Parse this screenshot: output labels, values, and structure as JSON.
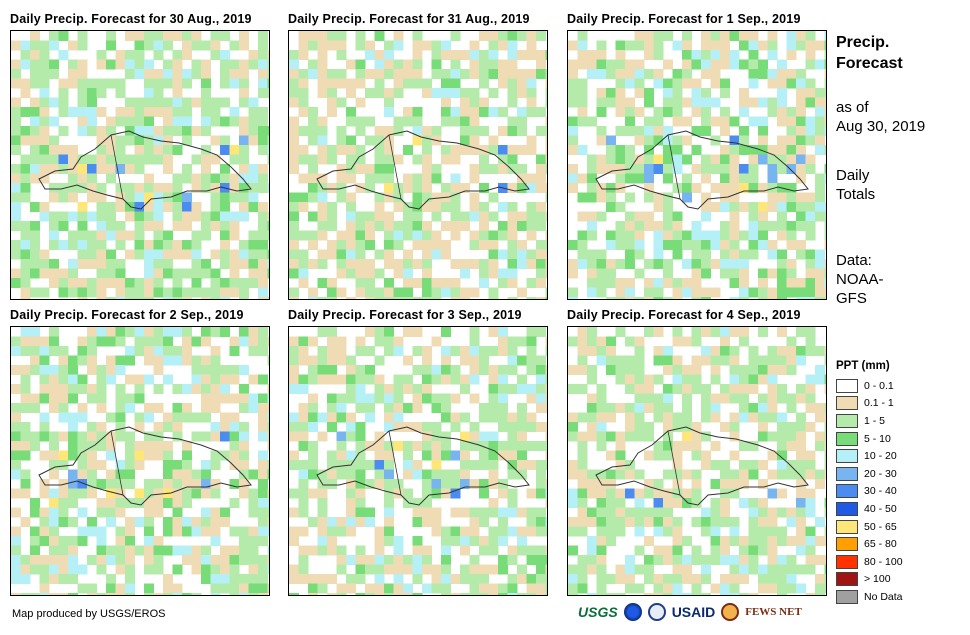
{
  "panels": [
    {
      "title": "Daily Precip. Forecast for 30 Aug., 2019"
    },
    {
      "title": "Daily Precip. Forecast for 31 Aug., 2019"
    },
    {
      "title": "Daily Precip. Forecast for 1 Sep., 2019"
    },
    {
      "title": "Daily Precip. Forecast for 2 Sep., 2019"
    },
    {
      "title": "Daily Precip. Forecast for 3 Sep., 2019"
    },
    {
      "title": "Daily Precip. Forecast for 4 Sep., 2019"
    }
  ],
  "side": {
    "title_line1": "Precip.",
    "title_line2": "Forecast",
    "asof_line1": "as of",
    "asof_line2": "Aug 30, 2019",
    "totals_line1": "Daily",
    "totals_line2": "Totals",
    "data_line1": "Data:",
    "data_line2": "NOAA-",
    "data_line3": "GFS"
  },
  "legend": {
    "title": "PPT (mm)",
    "items": [
      {
        "label": "0 - 0.1",
        "color": "#ffffff"
      },
      {
        "label": "0.1 - 1",
        "color": "#f0dcb4"
      },
      {
        "label": "1 - 5",
        "color": "#b4ebaa"
      },
      {
        "label": "5 - 10",
        "color": "#78dc78"
      },
      {
        "label": "10 - 20",
        "color": "#b4f0f5"
      },
      {
        "label": "20 - 30",
        "color": "#78b4f0"
      },
      {
        "label": "30 - 40",
        "color": "#4b8cf0"
      },
      {
        "label": "40 - 50",
        "color": "#1e5ae6"
      },
      {
        "label": "50 - 65",
        "color": "#ffe678"
      },
      {
        "label": "65 - 80",
        "color": "#ffa000"
      },
      {
        "label": "80 - 100",
        "color": "#ff3200"
      },
      {
        "label": "> 100",
        "color": "#a01414"
      },
      {
        "label": "No Data",
        "color": "#a0a0a0"
      }
    ]
  },
  "credit": "Map produced by USGS/EROS",
  "logos": {
    "usgs": "USGS",
    "usaid": "USAID",
    "fews": "FEWS NET"
  }
}
